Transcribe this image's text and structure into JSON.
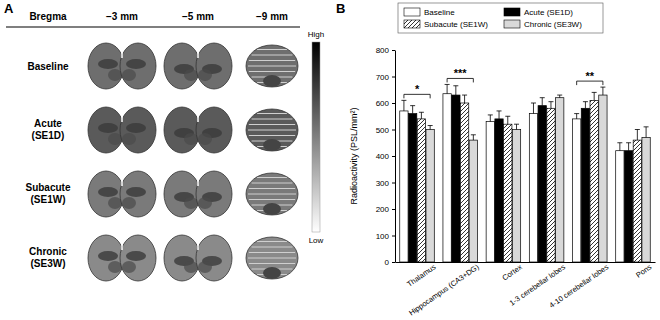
{
  "panel_a": {
    "label": "A",
    "header": "Bregma",
    "columns": [
      "−3 mm",
      "−5 mm",
      "−9 mm"
    ],
    "rows": [
      "Baseline",
      "Acute (SE1D)",
      "Subacute (SE1W)",
      "Chronic (SE3W)"
    ],
    "colorbar": {
      "high": "High",
      "low": "Low"
    }
  },
  "chart_data": {
    "type": "bar",
    "title": "B",
    "y_label": "Radioactivity (PSL/mm²)",
    "categories": [
      "Thalamus",
      "Hippocampus (CA3+DG)",
      "Cortex",
      "1-3 cerebellar lobes",
      "4-10 cerebellar lobes",
      "Pons"
    ],
    "series": [
      {
        "name": "Baseline",
        "color": "#ffffff",
        "values": [
          570,
          635,
          530,
          560,
          540,
          420
        ],
        "errors": [
          40,
          35,
          25,
          40,
          20,
          30
        ]
      },
      {
        "name": "Acute (SE1D)",
        "color": "#000000",
        "values": [
          560,
          630,
          540,
          590,
          580,
          420
        ],
        "errors": [
          30,
          35,
          30,
          30,
          25,
          30
        ]
      },
      {
        "name": "Subacute (SE1W)",
        "color": "#ffffff",
        "line_style": "hatch",
        "values": [
          540,
          600,
          520,
          580,
          610,
          460
        ],
        "errors": [
          25,
          30,
          30,
          25,
          30,
          40
        ]
      },
      {
        "name": "Chronic (SE3W)",
        "color": "#d9d9d9",
        "values": [
          500,
          460,
          500,
          620,
          630,
          470
        ],
        "errors": [
          15,
          20,
          20,
          10,
          30,
          40
        ]
      }
    ],
    "annotations": [
      {
        "text": "*",
        "category": "Thalamus"
      },
      {
        "text": "***",
        "category": "Hippocampus (CA3+DG)"
      },
      {
        "text": "**",
        "category": "4-10 cerebellar lobes"
      }
    ],
    "ylim": [
      0,
      800
    ],
    "yticks": [
      0,
      100,
      200,
      300,
      400,
      500,
      600,
      700,
      800
    ],
    "grid": false,
    "legend": "top"
  }
}
